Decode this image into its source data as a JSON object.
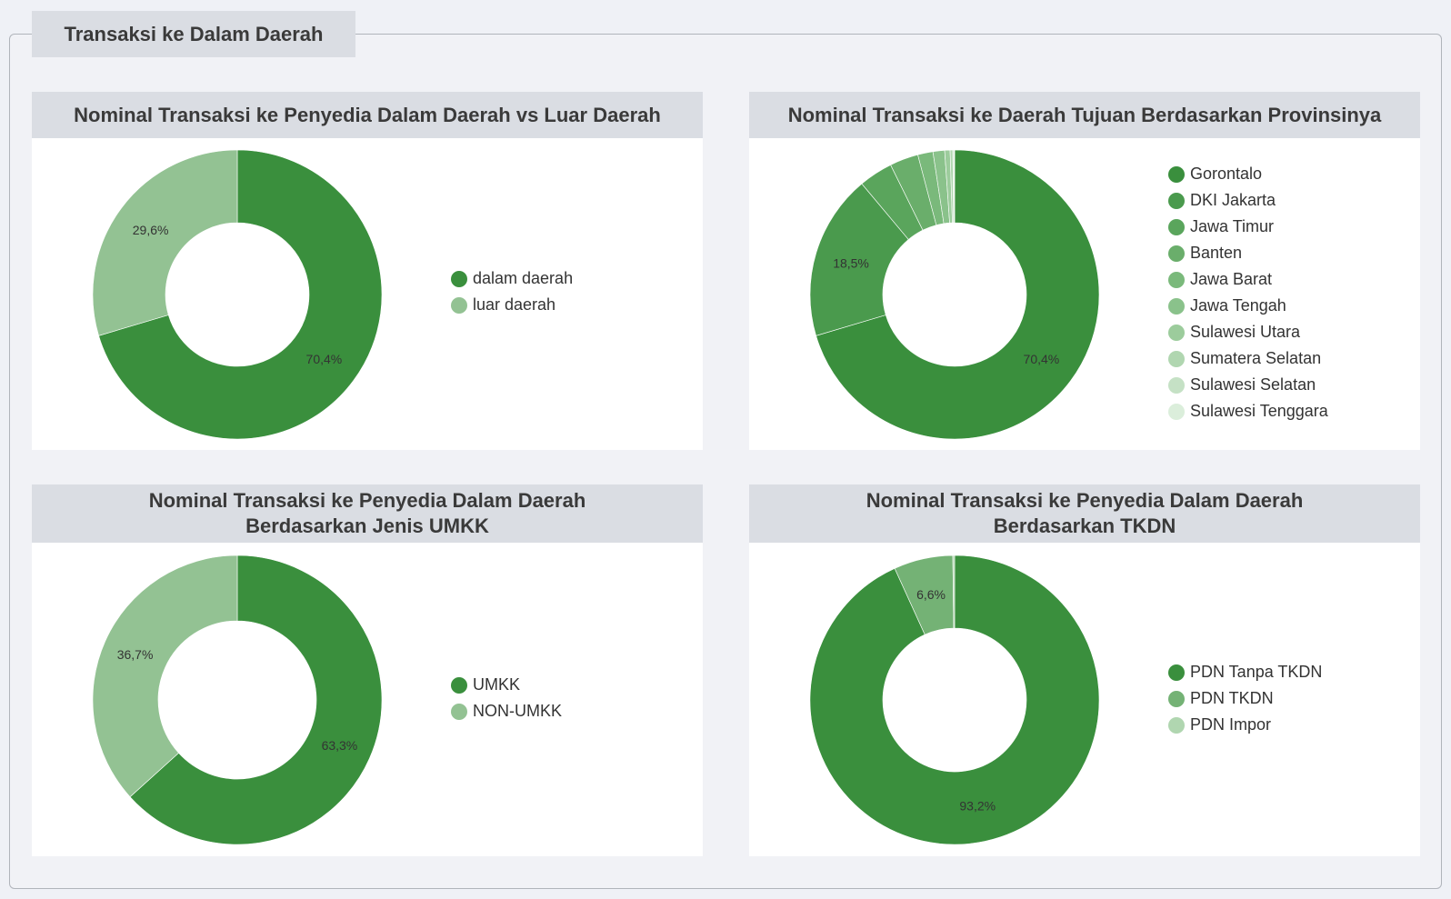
{
  "section": {
    "title": "Transaksi ke Dalam Daerah"
  },
  "charts": [
    {
      "id": "chart1",
      "title_lines": [
        "Nominal Transaksi ke Penyedia Dalam Daerah vs Luar Daerah"
      ],
      "chart_data": {
        "type": "pie",
        "title": "Nominal Transaksi ke Penyedia Dalam Daerah vs Luar Daerah",
        "donut": true,
        "categories": [
          "dalam daerah",
          "luar daerah"
        ],
        "values": [
          70.4,
          29.6
        ],
        "value_labels": [
          "70,4%",
          "29,6%"
        ],
        "colors": [
          "#3a8f3d",
          "#93c293"
        ],
        "legend_position": "right"
      }
    },
    {
      "id": "chart2",
      "title_lines": [
        "Nominal Transaksi ke Daerah Tujuan Berdasarkan Provinsinya"
      ],
      "chart_data": {
        "type": "pie",
        "title": "Nominal Transaksi ke Daerah Tujuan Berdasarkan Provinsinya",
        "donut": true,
        "categories": [
          "Gorontalo",
          "DKI Jakarta",
          "Jawa Timur",
          "Banten",
          "Jawa Barat",
          "Jawa Tengah",
          "Sulawesi Utara",
          "Sumatera Selatan",
          "Sulawesi Selatan",
          "Sulawesi Tenggara"
        ],
        "values": [
          70.4,
          18.5,
          3.8,
          3.2,
          1.7,
          1.3,
          0.6,
          0.3,
          0.15,
          0.05
        ],
        "value_labels": [
          "70,4%",
          "18,5%",
          "",
          "",
          "",
          "",
          "",
          "",
          "",
          ""
        ],
        "colors": [
          "#3a8f3d",
          "#4a9a4d",
          "#5aa55c",
          "#6aae6b",
          "#7ab97b",
          "#8ac28b",
          "#9ccc9c",
          "#b0d6b0",
          "#c5e1c5",
          "#dbeedb"
        ],
        "legend_position": "right"
      }
    },
    {
      "id": "chart3",
      "title_lines": [
        "Nominal Transaksi ke Penyedia Dalam Daerah",
        "Berdasarkan Jenis UMKK"
      ],
      "chart_data": {
        "type": "pie",
        "title": "Nominal Transaksi ke Penyedia Dalam Daerah Berdasarkan Jenis UMKK",
        "donut": true,
        "categories": [
          "UMKK",
          "NON-UMKK"
        ],
        "values": [
          63.3,
          36.7
        ],
        "value_labels": [
          "63,3%",
          "36,7%"
        ],
        "colors": [
          "#3a8f3d",
          "#93c293"
        ],
        "legend_position": "right"
      }
    },
    {
      "id": "chart4",
      "title_lines": [
        "Nominal Transaksi ke Penyedia Dalam Daerah",
        "Berdasarkan TKDN"
      ],
      "chart_data": {
        "type": "pie",
        "title": "Nominal Transaksi ke Penyedia Dalam Daerah Berdasarkan TKDN",
        "donut": true,
        "categories": [
          "PDN Tanpa TKDN",
          "PDN TKDN",
          "PDN Impor"
        ],
        "values": [
          93.2,
          6.6,
          0.2
        ],
        "value_labels": [
          "93,2%",
          "6,6%",
          ""
        ],
        "colors": [
          "#3a8f3d",
          "#74b275",
          "#b0d6b0"
        ],
        "legend_position": "right"
      }
    }
  ]
}
